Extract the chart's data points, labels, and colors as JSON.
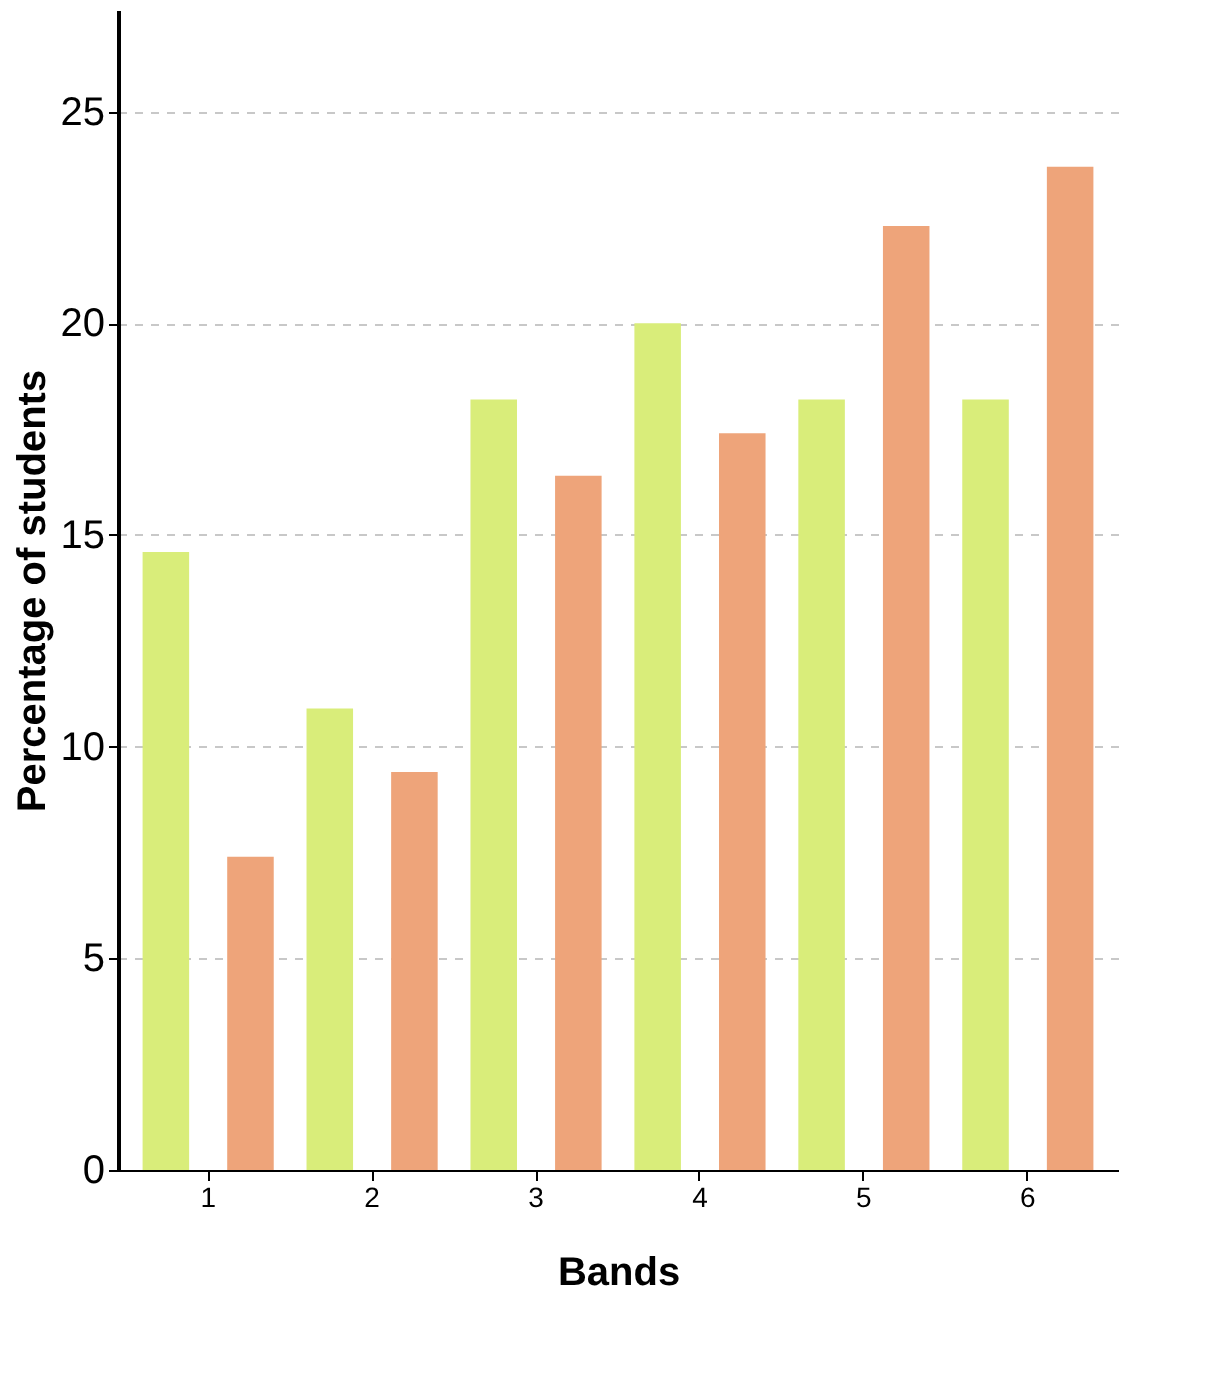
{
  "chart_data": {
    "type": "bar",
    "xlabel": "Bands",
    "ylabel": "Percentage of students",
    "categories": [
      "1",
      "2",
      "3",
      "4",
      "5",
      "6"
    ],
    "series": [
      {
        "color": "#d9ed7a",
        "values": [
          14.6,
          10.9,
          18.2,
          20.0,
          18.2,
          18.2
        ]
      },
      {
        "color": "#eea47a",
        "values": [
          7.4,
          9.4,
          16.4,
          17.4,
          22.3,
          23.7
        ]
      }
    ],
    "ylim": [
      0,
      27.4
    ],
    "yticks": [
      0,
      5,
      10,
      15,
      20,
      25
    ],
    "grid": "y",
    "legend": false
  }
}
